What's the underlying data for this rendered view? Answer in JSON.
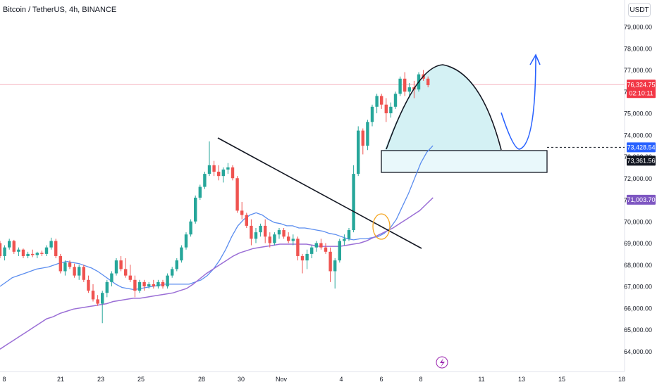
{
  "header": {
    "symbol_title": "Bitcoin / TetherUS, 4h, BINANCE",
    "currency_button": "USDT"
  },
  "colors": {
    "up": "#26a69a",
    "down": "#ef5350",
    "ma_fast": "#5b8def",
    "ma_slow": "#9b6fd6",
    "current_price_line": "#f6b6c1",
    "zone_fill": "#d4f1f4",
    "drawing": "#131722",
    "projection": "#2962ff",
    "label_blue": "#2962ff",
    "label_black": "#131722",
    "label_purple": "#7e57c2",
    "label_red": "#f23645"
  },
  "chart_data": {
    "type": "candlestick",
    "y_axis": {
      "ticks": [
        "79,000.00",
        "78,000.00",
        "77,000.00",
        "76,000.00",
        "75,000.00",
        "74,000.00",
        "73,000.00",
        "72,000.00",
        "71,000.00",
        "70,000.00",
        "69,000.00",
        "68,000.00",
        "67,000.00",
        "66,000.00",
        "65,000.00",
        "64,000.00"
      ],
      "tick_values": [
        79000,
        78000,
        77000,
        76000,
        75000,
        74000,
        73000,
        72000,
        71000,
        70000,
        69000,
        68000,
        67000,
        66000,
        65000,
        64000
      ],
      "range": [
        63600,
        79550
      ]
    },
    "x_axis": {
      "tick_labels": [
        "8",
        "21",
        "23",
        "25",
        "28",
        "30",
        "Nov",
        "4",
        "6",
        "8",
        "11",
        "13",
        "15",
        "18"
      ]
    },
    "price_labels": [
      {
        "id": "current",
        "text": "76,324.75",
        "sub": "02:10:11",
        "value": 76324.75,
        "style": "red"
      },
      {
        "id": "zone-top",
        "text": "73,428.54",
        "value": 73428.54,
        "style": "blue"
      },
      {
        "id": "zone-bottom",
        "text": "73,361.56",
        "value": 73361.56,
        "style": "black"
      },
      {
        "id": "ma",
        "text": "71,003.70",
        "value": 71003.7,
        "style": "purple"
      }
    ],
    "candles": [
      [
        69000,
        69100,
        68300,
        68400
      ],
      [
        68400,
        68900,
        68200,
        68800
      ],
      [
        68800,
        69200,
        68700,
        69100
      ],
      [
        69100,
        69150,
        68500,
        68600
      ],
      [
        68600,
        68800,
        68400,
        68700
      ],
      [
        68700,
        68750,
        68300,
        68400
      ],
      [
        68400,
        68600,
        68300,
        68500
      ],
      [
        68500,
        68700,
        68350,
        68450
      ],
      [
        68450,
        68600,
        68300,
        68550
      ],
      [
        68550,
        68650,
        68400,
        68500
      ],
      [
        68500,
        68900,
        68400,
        68800
      ],
      [
        68800,
        69250,
        68700,
        69100
      ],
      [
        69100,
        69200,
        68300,
        68400
      ],
      [
        68400,
        68500,
        67600,
        67700
      ],
      [
        67700,
        68200,
        67500,
        68100
      ],
      [
        68100,
        68200,
        67800,
        67900
      ],
      [
        67900,
        68050,
        67400,
        67500
      ],
      [
        67500,
        68000,
        67300,
        67900
      ],
      [
        67900,
        68000,
        67200,
        67300
      ],
      [
        67300,
        67500,
        66700,
        66800
      ],
      [
        66800,
        67100,
        66300,
        66400
      ],
      [
        66400,
        66600,
        66100,
        66200
      ],
      [
        66200,
        66800,
        65300,
        66700
      ],
      [
        66700,
        67300,
        66500,
        67200
      ],
      [
        67200,
        67700,
        67000,
        67600
      ],
      [
        67600,
        68300,
        67500,
        68200
      ],
      [
        68200,
        68400,
        67700,
        67800
      ],
      [
        67800,
        68300,
        67400,
        67500
      ],
      [
        67500,
        68000,
        67200,
        67300
      ],
      [
        67300,
        67500,
        66500,
        66800
      ],
      [
        66800,
        67300,
        66700,
        67200
      ],
      [
        67200,
        67300,
        66800,
        67000
      ],
      [
        67000,
        67200,
        66900,
        67100
      ],
      [
        67100,
        67300,
        66900,
        67000
      ],
      [
        67000,
        67300,
        66900,
        67200
      ],
      [
        67200,
        67300,
        66900,
        67000
      ],
      [
        67000,
        67600,
        66900,
        67500
      ],
      [
        67500,
        67900,
        67400,
        67800
      ],
      [
        67800,
        68300,
        67700,
        68200
      ],
      [
        68200,
        68900,
        68100,
        68800
      ],
      [
        68800,
        69500,
        68700,
        69400
      ],
      [
        69400,
        70100,
        69300,
        70000
      ],
      [
        70000,
        71200,
        69900,
        71100
      ],
      [
        71100,
        71700,
        71000,
        71600
      ],
      [
        71600,
        72300,
        71500,
        72200
      ],
      [
        72200,
        73700,
        72100,
        72600
      ],
      [
        72600,
        72800,
        72100,
        72300
      ],
      [
        72300,
        72600,
        71900,
        72100
      ],
      [
        72100,
        72500,
        71800,
        72400
      ],
      [
        72400,
        72700,
        72200,
        72500
      ],
      [
        72500,
        72600,
        71900,
        72000
      ],
      [
        72000,
        72100,
        70400,
        70500
      ],
      [
        70500,
        70900,
        70100,
        70300
      ],
      [
        70300,
        70400,
        69700,
        69800
      ],
      [
        69800,
        70100,
        68900,
        69200
      ],
      [
        69200,
        69700,
        69000,
        69500
      ],
      [
        69500,
        69900,
        69300,
        69800
      ],
      [
        69800,
        70100,
        69000,
        69300
      ],
      [
        69300,
        69500,
        68800,
        69000
      ],
      [
        69000,
        69500,
        68900,
        69400
      ],
      [
        69400,
        69700,
        69200,
        69600
      ],
      [
        69600,
        69700,
        69200,
        69300
      ],
      [
        69300,
        69500,
        69000,
        69100
      ],
      [
        69100,
        69400,
        68900,
        69200
      ],
      [
        69200,
        69300,
        68200,
        68400
      ],
      [
        68400,
        68500,
        67600,
        68200
      ],
      [
        68200,
        68700,
        67800,
        68500
      ],
      [
        68500,
        68900,
        68300,
        68800
      ],
      [
        68800,
        69100,
        68600,
        69000
      ],
      [
        69000,
        69200,
        68700,
        68800
      ],
      [
        68800,
        69000,
        68500,
        68600
      ],
      [
        68600,
        68800,
        67200,
        67700
      ],
      [
        67700,
        68300,
        66900,
        68200
      ],
      [
        68200,
        69200,
        68100,
        69100
      ],
      [
        69100,
        69400,
        68900,
        69200
      ],
      [
        69200,
        69700,
        69100,
        69600
      ],
      [
        69600,
        72600,
        69500,
        72200
      ],
      [
        72200,
        74400,
        72100,
        74200
      ],
      [
        74200,
        74300,
        73100,
        73500
      ],
      [
        73500,
        74700,
        73300,
        74600
      ],
      [
        74600,
        75400,
        74400,
        75300
      ],
      [
        75300,
        75900,
        75000,
        75800
      ],
      [
        75800,
        75900,
        75200,
        75400
      ],
      [
        75400,
        75700,
        74600,
        75000
      ],
      [
        75000,
        75500,
        74800,
        75300
      ],
      [
        75300,
        76000,
        75200,
        75900
      ],
      [
        75900,
        76700,
        75800,
        76600
      ],
      [
        76600,
        76900,
        75800,
        76000
      ],
      [
        76000,
        76400,
        75800,
        76200
      ],
      [
        76200,
        76500,
        75700,
        76100
      ],
      [
        76100,
        76900,
        76000,
        76800
      ],
      [
        76800,
        77000,
        76500,
        76600
      ],
      [
        76600,
        76700,
        76200,
        76300
      ]
    ],
    "ma_fast_values": [
      67000,
      67200,
      67400,
      67500,
      67600,
      67700,
      67800,
      67850,
      67900,
      68000,
      68100,
      68150,
      68100,
      68050,
      67950,
      67850,
      67700,
      67500,
      67300,
      67100,
      66950,
      66900,
      66850,
      66900,
      66950,
      67000,
      67050,
      67100,
      67100,
      67100,
      67100,
      67100,
      67200,
      67300,
      67500,
      67800,
      68200,
      68700,
      69300,
      69800,
      70100,
      70300,
      70400,
      70300,
      70100,
      69950,
      69900,
      69800,
      69800,
      69700,
      69700,
      69650,
      69600,
      69550,
      69450,
      69400,
      69300,
      69200,
      69150,
      69200,
      69200,
      69250,
      69300,
      69450,
      69700,
      70100,
      70700,
      71300,
      72000,
      72700,
      73200,
      73500
    ],
    "ma_slow_values": [
      64100,
      64300,
      64500,
      64700,
      64900,
      65100,
      65300,
      65500,
      65600,
      65750,
      65850,
      65950,
      66000,
      66050,
      66100,
      66150,
      66200,
      66300,
      66350,
      66400,
      66450,
      66450,
      66500,
      66550,
      66600,
      66650,
      66700,
      66800,
      66900,
      67100,
      67350,
      67600,
      67800,
      68000,
      68200,
      68400,
      68550,
      68650,
      68750,
      68800,
      68850,
      68900,
      68950,
      68950,
      68950,
      68950,
      68950,
      68900,
      68850,
      68850,
      68850,
      68850,
      68900,
      68950,
      69000,
      69100,
      69250,
      69400,
      69550,
      69700,
      69900,
      70100,
      70300,
      70500,
      70800,
      71100
    ]
  },
  "annotations": {
    "icon": "lightning-icon"
  }
}
